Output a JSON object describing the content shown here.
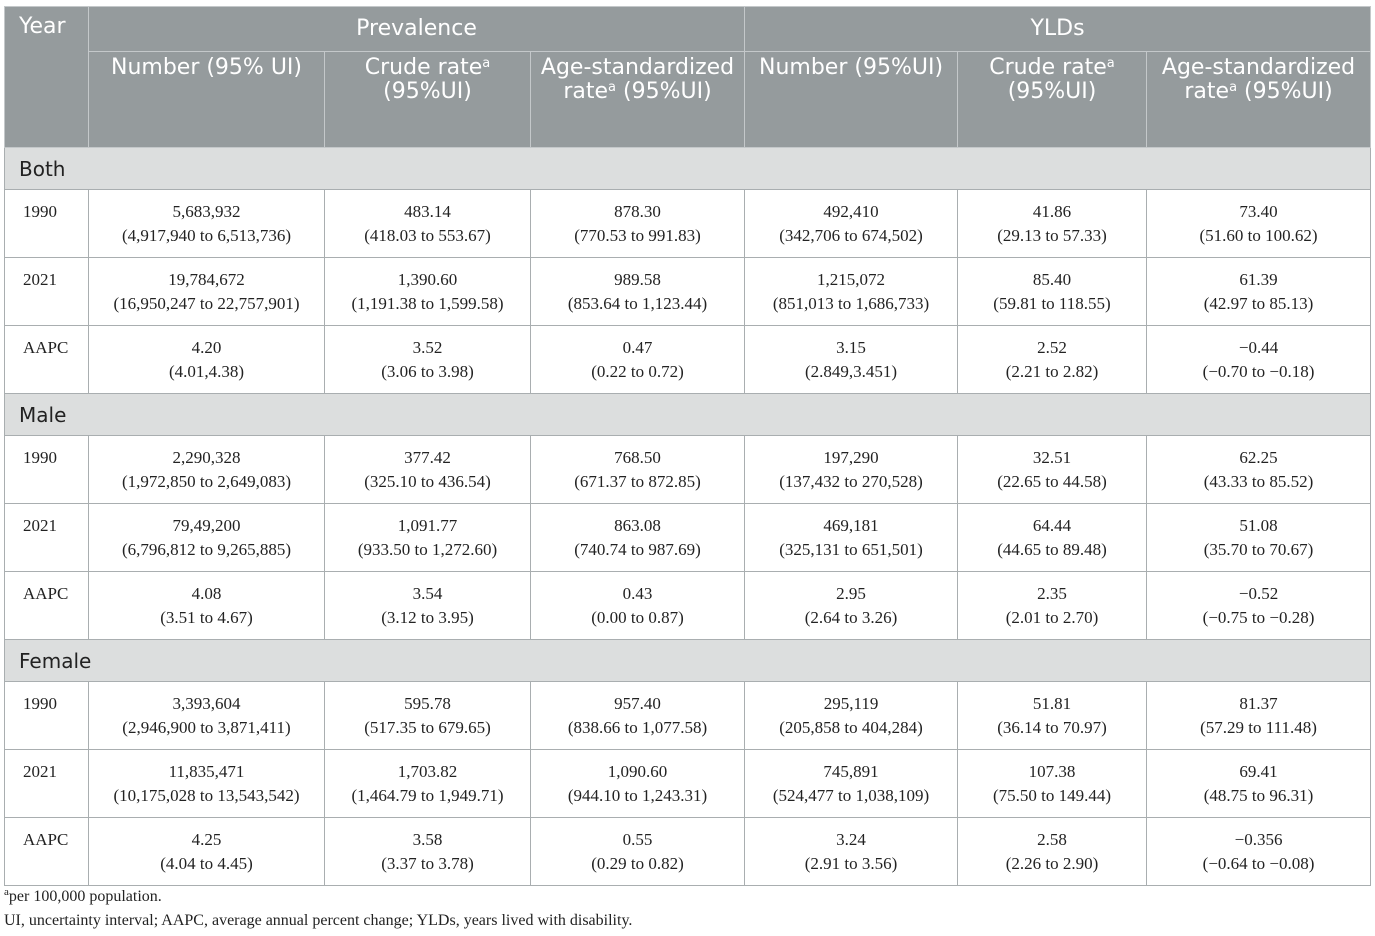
{
  "header": {
    "year": "Year",
    "group_prevalence": "Prevalence",
    "group_ylds": "YLDs",
    "sub": [
      {
        "pre": "Number (95% UI)",
        "sup": "",
        "post": ""
      },
      {
        "pre": "Crude rate",
        "sup": "a",
        "post": " (95%UI)"
      },
      {
        "pre": "Age-standardized rate",
        "sup": "a",
        "post": " (95%UI)"
      },
      {
        "pre": "Number (95%UI)",
        "sup": "",
        "post": ""
      },
      {
        "pre": "Crude rate",
        "sup": "a",
        "post": " (95%UI)"
      },
      {
        "pre": "Age-standardized rate",
        "sup": "a",
        "post": " (95%UI)"
      }
    ]
  },
  "sections": [
    {
      "name": "Both",
      "rows": [
        {
          "label": "1990",
          "cells": [
            [
              "5,683,932",
              "(4,917,940 to 6,513,736)"
            ],
            [
              "483.14",
              "(418.03 to 553.67)"
            ],
            [
              "878.30",
              "(770.53 to 991.83)"
            ],
            [
              "492,410",
              "(342,706 to 674,502)"
            ],
            [
              "41.86",
              "(29.13 to 57.33)"
            ],
            [
              "73.40",
              "(51.60 to 100.62)"
            ]
          ]
        },
        {
          "label": "2021",
          "cells": [
            [
              "19,784,672",
              "(16,950,247 to 22,757,901)"
            ],
            [
              "1,390.60",
              "(1,191.38 to 1,599.58)"
            ],
            [
              "989.58",
              "(853.64 to 1,123.44)"
            ],
            [
              "1,215,072",
              "(851,013 to 1,686,733)"
            ],
            [
              "85.40",
              "(59.81 to 118.55)"
            ],
            [
              "61.39",
              "(42.97 to 85.13)"
            ]
          ]
        },
        {
          "label": "AAPC",
          "cells": [
            [
              "4.20",
              "(4.01,4.38)"
            ],
            [
              "3.52",
              "(3.06 to 3.98)"
            ],
            [
              "0.47",
              "(0.22 to 0.72)"
            ],
            [
              "3.15",
              "(2.849,3.451)"
            ],
            [
              "2.52",
              "(2.21 to 2.82)"
            ],
            [
              "−0.44",
              "(−0.70 to −0.18)"
            ]
          ]
        }
      ]
    },
    {
      "name": "Male",
      "rows": [
        {
          "label": "1990",
          "cells": [
            [
              "2,290,328",
              "(1,972,850 to 2,649,083)"
            ],
            [
              "377.42",
              "(325.10 to 436.54)"
            ],
            [
              "768.50",
              "(671.37 to 872.85)"
            ],
            [
              "197,290",
              "(137,432 to 270,528)"
            ],
            [
              "32.51",
              "(22.65 to 44.58)"
            ],
            [
              "62.25",
              "(43.33 to 85.52)"
            ]
          ]
        },
        {
          "label": "2021",
          "cells": [
            [
              "79,49,200",
              "(6,796,812 to 9,265,885)"
            ],
            [
              "1,091.77",
              "(933.50 to 1,272.60)"
            ],
            [
              "863.08",
              "(740.74 to 987.69)"
            ],
            [
              "469,181",
              "(325,131 to 651,501)"
            ],
            [
              "64.44",
              "(44.65 to 89.48)"
            ],
            [
              "51.08",
              "(35.70 to 70.67)"
            ]
          ]
        },
        {
          "label": "AAPC",
          "cells": [
            [
              "4.08",
              "(3.51 to 4.67)"
            ],
            [
              "3.54",
              "(3.12 to 3.95)"
            ],
            [
              "0.43",
              "(0.00 to 0.87)"
            ],
            [
              "2.95",
              "(2.64 to 3.26)"
            ],
            [
              "2.35",
              "(2.01 to 2.70)"
            ],
            [
              "−0.52",
              "(−0.75 to −0.28)"
            ]
          ]
        }
      ]
    },
    {
      "name": "Female",
      "rows": [
        {
          "label": "1990",
          "cells": [
            [
              "3,393,604",
              "(2,946,900 to 3,871,411)"
            ],
            [
              "595.78",
              "(517.35 to 679.65)"
            ],
            [
              "957.40",
              "(838.66 to 1,077.58)"
            ],
            [
              "295,119",
              "(205,858 to 404,284)"
            ],
            [
              "51.81",
              "(36.14 to 70.97)"
            ],
            [
              "81.37",
              "(57.29 to 111.48)"
            ]
          ]
        },
        {
          "label": "2021",
          "cells": [
            [
              "11,835,471",
              "(10,175,028 to 13,543,542)"
            ],
            [
              "1,703.82",
              "(1,464.79 to 1,949.71)"
            ],
            [
              "1,090.60",
              "(944.10 to 1,243.31)"
            ],
            [
              "745,891",
              "(524,477 to 1,038,109)"
            ],
            [
              "107.38",
              "(75.50 to 149.44)"
            ],
            [
              "69.41",
              "(48.75 to 96.31)"
            ]
          ]
        },
        {
          "label": "AAPC",
          "cells": [
            [
              "4.25",
              "(4.04 to 4.45)"
            ],
            [
              "3.58",
              "(3.37 to 3.78)"
            ],
            [
              "0.55",
              "(0.29 to 0.82)"
            ],
            [
              "3.24",
              "(2.91 to 3.56)"
            ],
            [
              "2.58",
              "(2.26 to 2.90)"
            ],
            [
              "−0.356",
              "(−0.64 to −0.08)"
            ]
          ]
        }
      ]
    }
  ],
  "footnotes": {
    "marker": "a",
    "note_a": "per 100,000 population.",
    "abbrev": "UI, uncertainty interval; AAPC, average annual percent change; YLDs, years lived with disability."
  }
}
